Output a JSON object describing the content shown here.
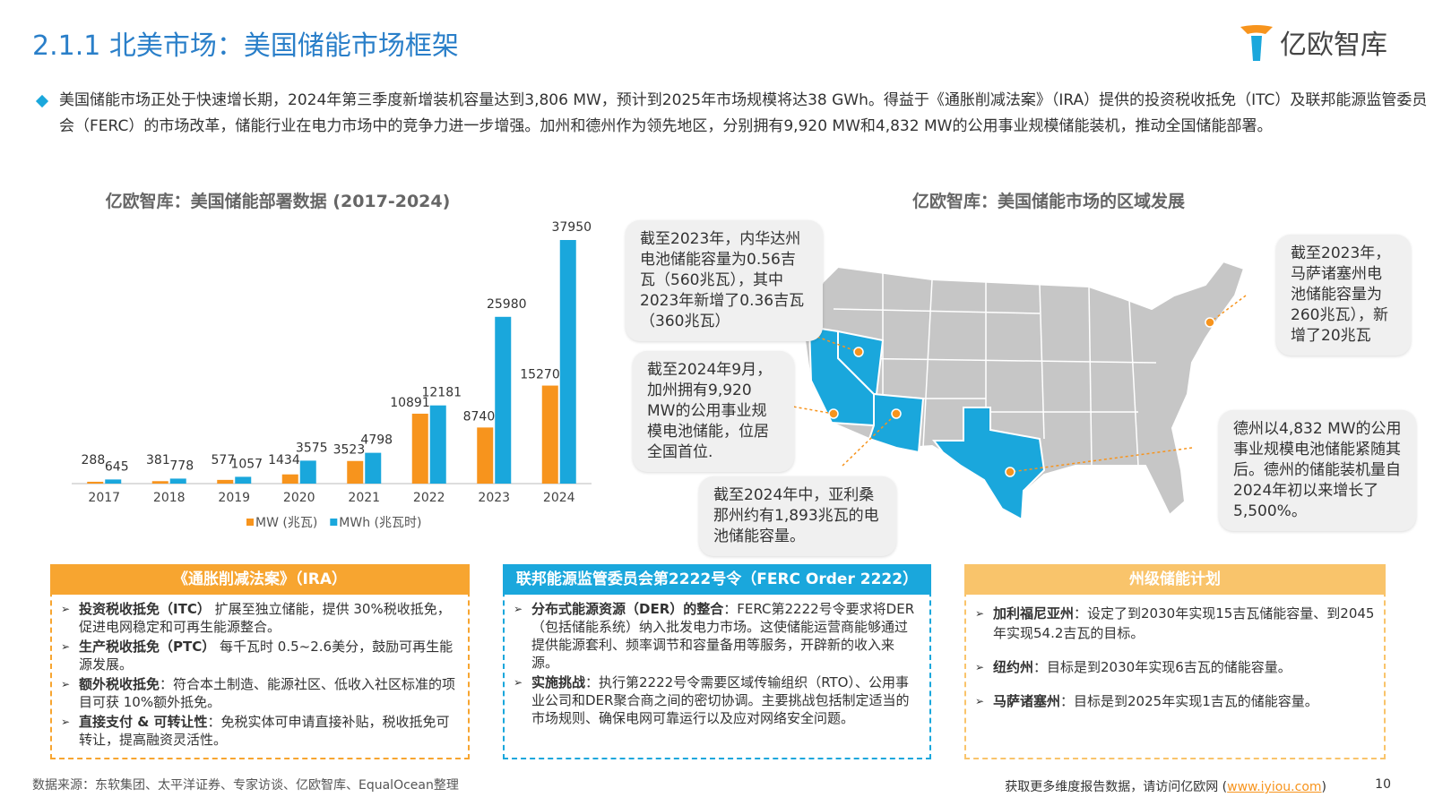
{
  "header": {
    "title": "2.1.1 北美市场：美国储能市场框架",
    "logo": "亿欧智库"
  },
  "intro": "美国储能市场正处于快速增长期，2024年第三季度新增装机容量达到3,806 MW，预计到2025年市场规模将达38 GWh。得益于《通胀削减法案》（IRA）提供的投资税收抵免（ITC）及联邦能源监管委员会（FERC）的市场改革，储能行业在电力市场中的竞争力进一步增强。加州和德州作为领先地区，分别拥有9,920 MW和4,832 MW的公用事业规模储能装机，推动全国储能部署。",
  "chart_data": {
    "type": "bar",
    "title": "亿欧智库：美国储能部署数据 (2017-2024)",
    "categories": [
      "2017",
      "2018",
      "2019",
      "2020",
      "2021",
      "2022",
      "2023",
      "2024"
    ],
    "series": [
      {
        "name": "MW (兆瓦)",
        "color": "#f7941d",
        "values": [
          288,
          381,
          577,
          1434,
          3523,
          10891,
          8740,
          15270
        ]
      },
      {
        "name": "MWh (兆瓦时)",
        "color": "#1aa7dc",
        "values": [
          645,
          778,
          1057,
          3575,
          4798,
          12181,
          25980,
          37950
        ]
      }
    ]
  },
  "map": {
    "title": "亿欧智库：美国储能市场的区域发展",
    "callouts": [
      "截至2023年，内华达州电池储能容量为0.56吉瓦（560兆瓦），其中2023年新增了0.36吉瓦（360兆瓦）",
      "截至2024年9月，加州拥有9,920 MW的公用事业规模电池储能，位居全国首位.",
      "截至2024年中，亚利桑那州约有1,893兆瓦的电池储能容量。",
      "截至2023年，马萨诸塞州电池储能容量为260兆瓦），新增了20兆瓦",
      "德州以4,832 MW的公用事业规模电池储能紧随其后。德州的储能装机量自2024年初以来增长了5,500%。"
    ]
  },
  "boxes": [
    {
      "title": "《通胀削减法案》（IRA）",
      "items": [
        {
          "label": "投资税收抵免（ITC）",
          "text": " 扩展至独立储能，提供 30%税收抵免，促进电网稳定和可再生能源整合。"
        },
        {
          "label": "生产税收抵免（PTC）",
          "text": " 每千瓦时 0.5~2.6美分，鼓励可再生能源发展。"
        },
        {
          "label": "额外税收抵免",
          "text": "：符合本土制造、能源社区、低收入社区标准的项目可获 10%额外抵免。"
        },
        {
          "label": "直接支付 & 可转让性",
          "text": "：免税实体可申请直接补贴，税收抵免可转让，提高融资灵活性。"
        }
      ]
    },
    {
      "title": "联邦能源监管委员会第2222号令（FERC Order 2222）",
      "items": [
        {
          "label": "分布式能源资源（DER）的整合",
          "text": "：FERC第2222号令要求将DER（包括储能系统）纳入批发电力市场。这使储能运营商能够通过提供能源套利、频率调节和容量备用等服务，开辟新的收入来源。"
        },
        {
          "label": "实施挑战",
          "text": "：执行第2222号令需要区域传输组织（RTO）、公用事业公司和DER聚合商之间的密切协调。主要挑战包括制定适当的市场规则、确保电网可靠运行以及应对网络安全问题。"
        }
      ]
    },
    {
      "title": "州级储能计划",
      "items": [
        {
          "label": "加利福尼亚州",
          "text": "：设定了到2030年实现15吉瓦储能容量、到2045年实现54.2吉瓦的目标。"
        },
        {
          "label": "纽约州",
          "text": "：目标是到2030年实现6吉瓦的储能容量。"
        },
        {
          "label": "马萨诸塞州",
          "text": "：目标是到2025年实现1吉瓦的储能容量。"
        }
      ]
    }
  ],
  "footer": {
    "source": "数据来源：东软集团、太平洋证券、专家访谈、亿欧智库、EqualOcean整理",
    "link_prefix": "获取更多维度报告数据，请访问亿欧网 (",
    "link": "www.iyiou.com",
    "link_suffix": ")",
    "page": "10"
  }
}
